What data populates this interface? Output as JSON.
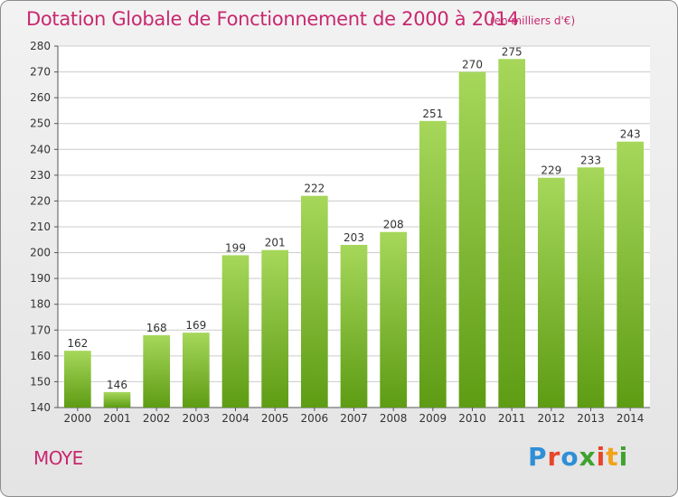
{
  "header": {
    "title": "Dotation Globale de Fonctionnement de 2000 à 2014",
    "subtitle": "(en milliers d'€)"
  },
  "footer": {
    "commune": "MOYE",
    "logo_text": "Proxiti"
  },
  "colors": {
    "title": "#c8286f",
    "bar_light": "#a6d75a",
    "bar_dark": "#5e9c14",
    "grid": "#cccccc",
    "logo": [
      "#2f8fd6",
      "#e8452a",
      "#2f8fd6",
      "#3fa22e",
      "#e8452a",
      "#f2a31a",
      "#3fa22e"
    ]
  },
  "chart_data": {
    "type": "bar",
    "title": "Dotation Globale de Fonctionnement de 2000 à 2014",
    "subtitle": "(en milliers d'€)",
    "categories": [
      "2000",
      "2001",
      "2002",
      "2003",
      "2004",
      "2005",
      "2006",
      "2007",
      "2008",
      "2009",
      "2010",
      "2011",
      "2012",
      "2013",
      "2014"
    ],
    "values": [
      162,
      146,
      168,
      169,
      199,
      201,
      222,
      203,
      208,
      251,
      270,
      275,
      229,
      233,
      243
    ],
    "ylim": [
      140,
      280
    ],
    "yticks": [
      140,
      150,
      160,
      170,
      180,
      190,
      200,
      210,
      220,
      230,
      240,
      250,
      260,
      270,
      280
    ],
    "grid": true,
    "data_labels": true
  }
}
